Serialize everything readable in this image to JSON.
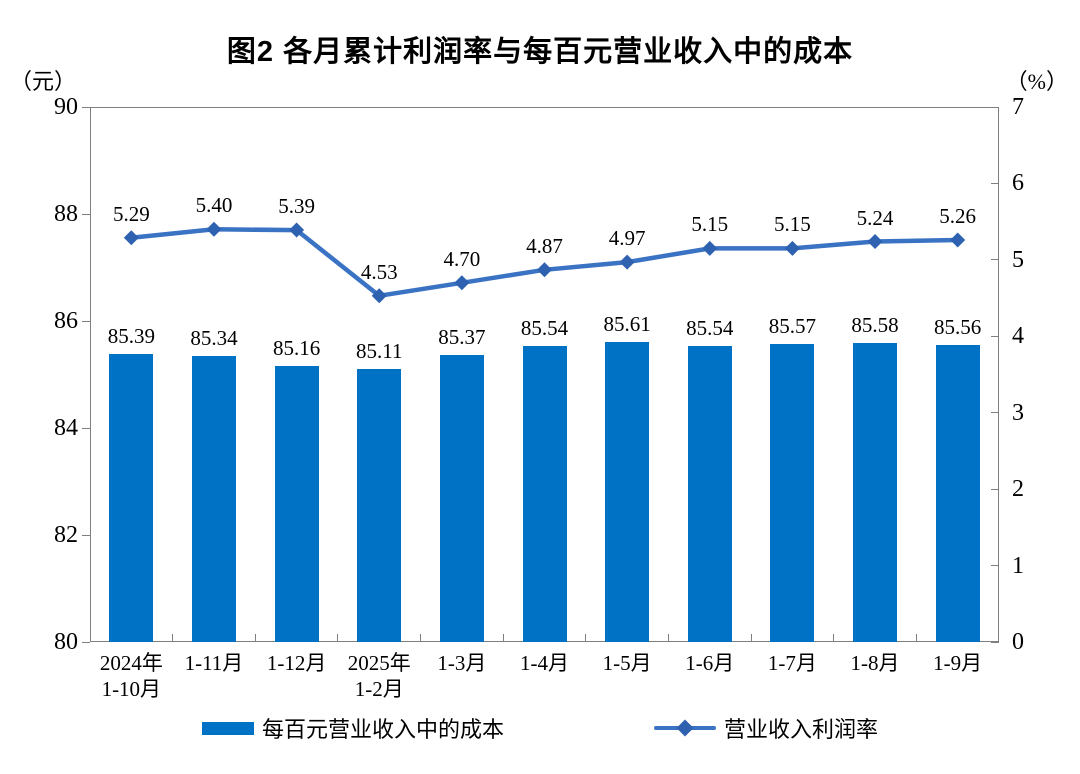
{
  "title": "图2 各月累计利润率与每百元营业收入中的成本",
  "left_axis_unit": "（元）",
  "right_axis_unit": "（%）",
  "chart_data": {
    "type": "bar",
    "title": "图2 各月累计利润率与每百元营业收入中的成本",
    "categories": [
      [
        "2024年",
        "1-10月"
      ],
      [
        "1-11月"
      ],
      [
        "1-12月"
      ],
      [
        "2025年",
        "1-2月"
      ],
      [
        "1-3月"
      ],
      [
        "1-4月"
      ],
      [
        "1-5月"
      ],
      [
        "1-6月"
      ],
      [
        "1-7月"
      ],
      [
        "1-8月"
      ],
      [
        "1-9月"
      ]
    ],
    "series": [
      {
        "name": "每百元营业收入中的成本",
        "type": "bar",
        "axis": "left",
        "values": [
          85.39,
          85.34,
          85.16,
          85.11,
          85.37,
          85.54,
          85.61,
          85.54,
          85.57,
          85.58,
          85.56
        ],
        "color": "#0072C6"
      },
      {
        "name": "营业收入利润率",
        "type": "line",
        "axis": "right",
        "values": [
          5.29,
          5.4,
          5.39,
          4.53,
          4.7,
          4.87,
          4.97,
          5.15,
          5.15,
          5.24,
          5.26
        ],
        "color": "#3A72C4",
        "marker": "diamond",
        "marker_color": "#2E61B0"
      }
    ],
    "left_axis": {
      "unit": "（元）",
      "ticks": [
        90,
        88,
        86,
        84,
        82,
        80
      ],
      "min": 80,
      "max": 90
    },
    "right_axis": {
      "unit": "（%）",
      "ticks": [
        7,
        6,
        5,
        4,
        3,
        2,
        1,
        0
      ],
      "min": 0,
      "max": 7
    },
    "grid": false,
    "legend_position": "bottom",
    "data_labels": true
  },
  "colors": {
    "axis": "#7F7F7F",
    "text": "#000000"
  }
}
